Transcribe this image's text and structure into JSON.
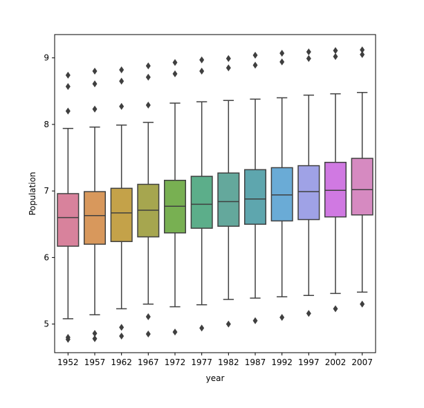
{
  "chart_data": {
    "type": "boxplot",
    "xlabel": "year",
    "ylabel": "Population",
    "ylim": [
      4.57,
      9.35
    ],
    "yticks": [
      5,
      6,
      7,
      8,
      9
    ],
    "categories": [
      "1952",
      "1957",
      "1962",
      "1967",
      "1972",
      "1977",
      "1982",
      "1987",
      "1992",
      "1997",
      "2002",
      "2007"
    ],
    "colors": [
      "#d8829c",
      "#d8985c",
      "#c4a249",
      "#a6a64f",
      "#78b052",
      "#5cae8a",
      "#64a89c",
      "#5ea6ae",
      "#6aabd6",
      "#9fa2e6",
      "#d079e2",
      "#d68ac1"
    ],
    "boxes": [
      {
        "whisker_low": 5.08,
        "q1": 6.17,
        "median": 6.6,
        "q3": 6.96,
        "whisker_high": 7.94,
        "outliers": [
          8.74,
          8.57,
          8.2,
          4.8,
          4.77
        ]
      },
      {
        "whisker_low": 5.14,
        "q1": 6.2,
        "median": 6.63,
        "q3": 6.99,
        "whisker_high": 7.96,
        "outliers": [
          8.8,
          8.61,
          8.23,
          4.86,
          4.78
        ]
      },
      {
        "whisker_low": 5.23,
        "q1": 6.24,
        "median": 6.67,
        "q3": 7.04,
        "whisker_high": 7.99,
        "outliers": [
          8.82,
          8.65,
          8.27,
          4.95,
          4.82
        ]
      },
      {
        "whisker_low": 5.3,
        "q1": 6.31,
        "median": 6.71,
        "q3": 7.1,
        "whisker_high": 8.03,
        "outliers": [
          8.88,
          8.71,
          8.29,
          5.11,
          4.85
        ]
      },
      {
        "whisker_low": 5.26,
        "q1": 6.37,
        "median": 6.77,
        "q3": 7.16,
        "whisker_high": 8.32,
        "outliers": [
          8.93,
          8.76,
          4.88
        ]
      },
      {
        "whisker_low": 5.29,
        "q1": 6.44,
        "median": 6.8,
        "q3": 7.22,
        "whisker_high": 8.34,
        "outliers": [
          8.97,
          8.8,
          4.94
        ]
      },
      {
        "whisker_low": 5.37,
        "q1": 6.47,
        "median": 6.84,
        "q3": 7.27,
        "whisker_high": 8.36,
        "outliers": [
          8.99,
          8.85,
          5.0
        ]
      },
      {
        "whisker_low": 5.39,
        "q1": 6.5,
        "median": 6.88,
        "q3": 7.32,
        "whisker_high": 8.38,
        "outliers": [
          9.04,
          8.89,
          5.05
        ]
      },
      {
        "whisker_low": 5.41,
        "q1": 6.55,
        "median": 6.94,
        "q3": 7.35,
        "whisker_high": 8.4,
        "outliers": [
          9.07,
          8.94,
          5.1
        ]
      },
      {
        "whisker_low": 5.43,
        "q1": 6.57,
        "median": 6.99,
        "q3": 7.38,
        "whisker_high": 8.44,
        "outliers": [
          9.09,
          8.99,
          5.16
        ]
      },
      {
        "whisker_low": 5.46,
        "q1": 6.61,
        "median": 7.01,
        "q3": 7.43,
        "whisker_high": 8.46,
        "outliers": [
          9.11,
          9.02,
          5.23
        ]
      },
      {
        "whisker_low": 5.48,
        "q1": 6.64,
        "median": 7.02,
        "q3": 7.49,
        "whisker_high": 8.48,
        "outliers": [
          9.12,
          9.05,
          5.3
        ]
      }
    ]
  }
}
